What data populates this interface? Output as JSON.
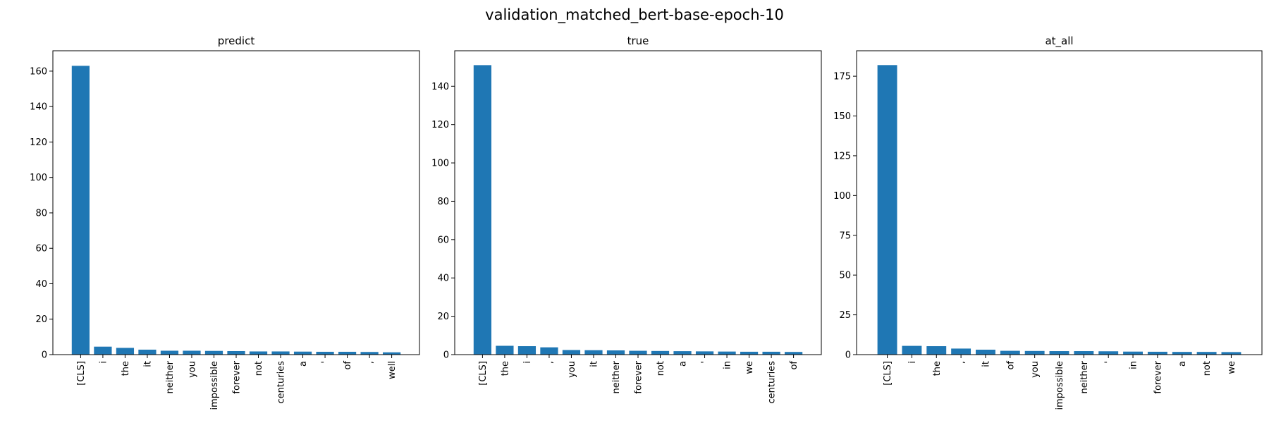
{
  "figure": {
    "suptitle": "validation_matched_bert-base-epoch-10",
    "bar_color": "#1f77b4"
  },
  "chart_data": [
    {
      "type": "bar",
      "title": "predict",
      "categories": [
        "[CLS]",
        "i",
        "the",
        "it",
        "neither",
        "you",
        "impossible",
        "forever",
        "not",
        "centuries",
        "a",
        "'",
        "of",
        ",",
        "well"
      ],
      "values": [
        163,
        4.5,
        3.8,
        2.8,
        2.2,
        2.2,
        2.1,
        2.0,
        1.8,
        1.8,
        1.7,
        1.6,
        1.6,
        1.5,
        1.3
      ],
      "ylim": [
        0,
        171.5
      ],
      "yticks": [
        0,
        20,
        40,
        60,
        80,
        100,
        120,
        140,
        160
      ]
    },
    {
      "type": "bar",
      "title": "true",
      "categories": [
        "[CLS]",
        "the",
        "i",
        ",",
        "you",
        "it",
        "neither",
        "forever",
        "not",
        "a",
        "'",
        "in",
        "we",
        "centuries",
        "of"
      ],
      "values": [
        151,
        4.6,
        4.4,
        3.8,
        2.4,
        2.3,
        2.2,
        2.0,
        1.9,
        1.8,
        1.7,
        1.6,
        1.5,
        1.5,
        1.4
      ],
      "ylim": [
        0,
        158.5
      ],
      "yticks": [
        0,
        20,
        40,
        60,
        80,
        100,
        120,
        140
      ]
    },
    {
      "type": "bar",
      "title": "at_all",
      "categories": [
        "[CLS]",
        "i",
        "the",
        ",",
        "it",
        "of",
        "you",
        "impossible",
        "neither",
        "'",
        "in",
        "forever",
        "a",
        "not",
        "we"
      ],
      "values": [
        182,
        5.5,
        5.3,
        3.8,
        3.1,
        2.4,
        2.3,
        2.2,
        2.2,
        2.1,
        1.9,
        1.8,
        1.7,
        1.7,
        1.6
      ],
      "ylim": [
        0,
        191
      ],
      "yticks": [
        0,
        25,
        50,
        75,
        100,
        125,
        150,
        175
      ]
    }
  ]
}
